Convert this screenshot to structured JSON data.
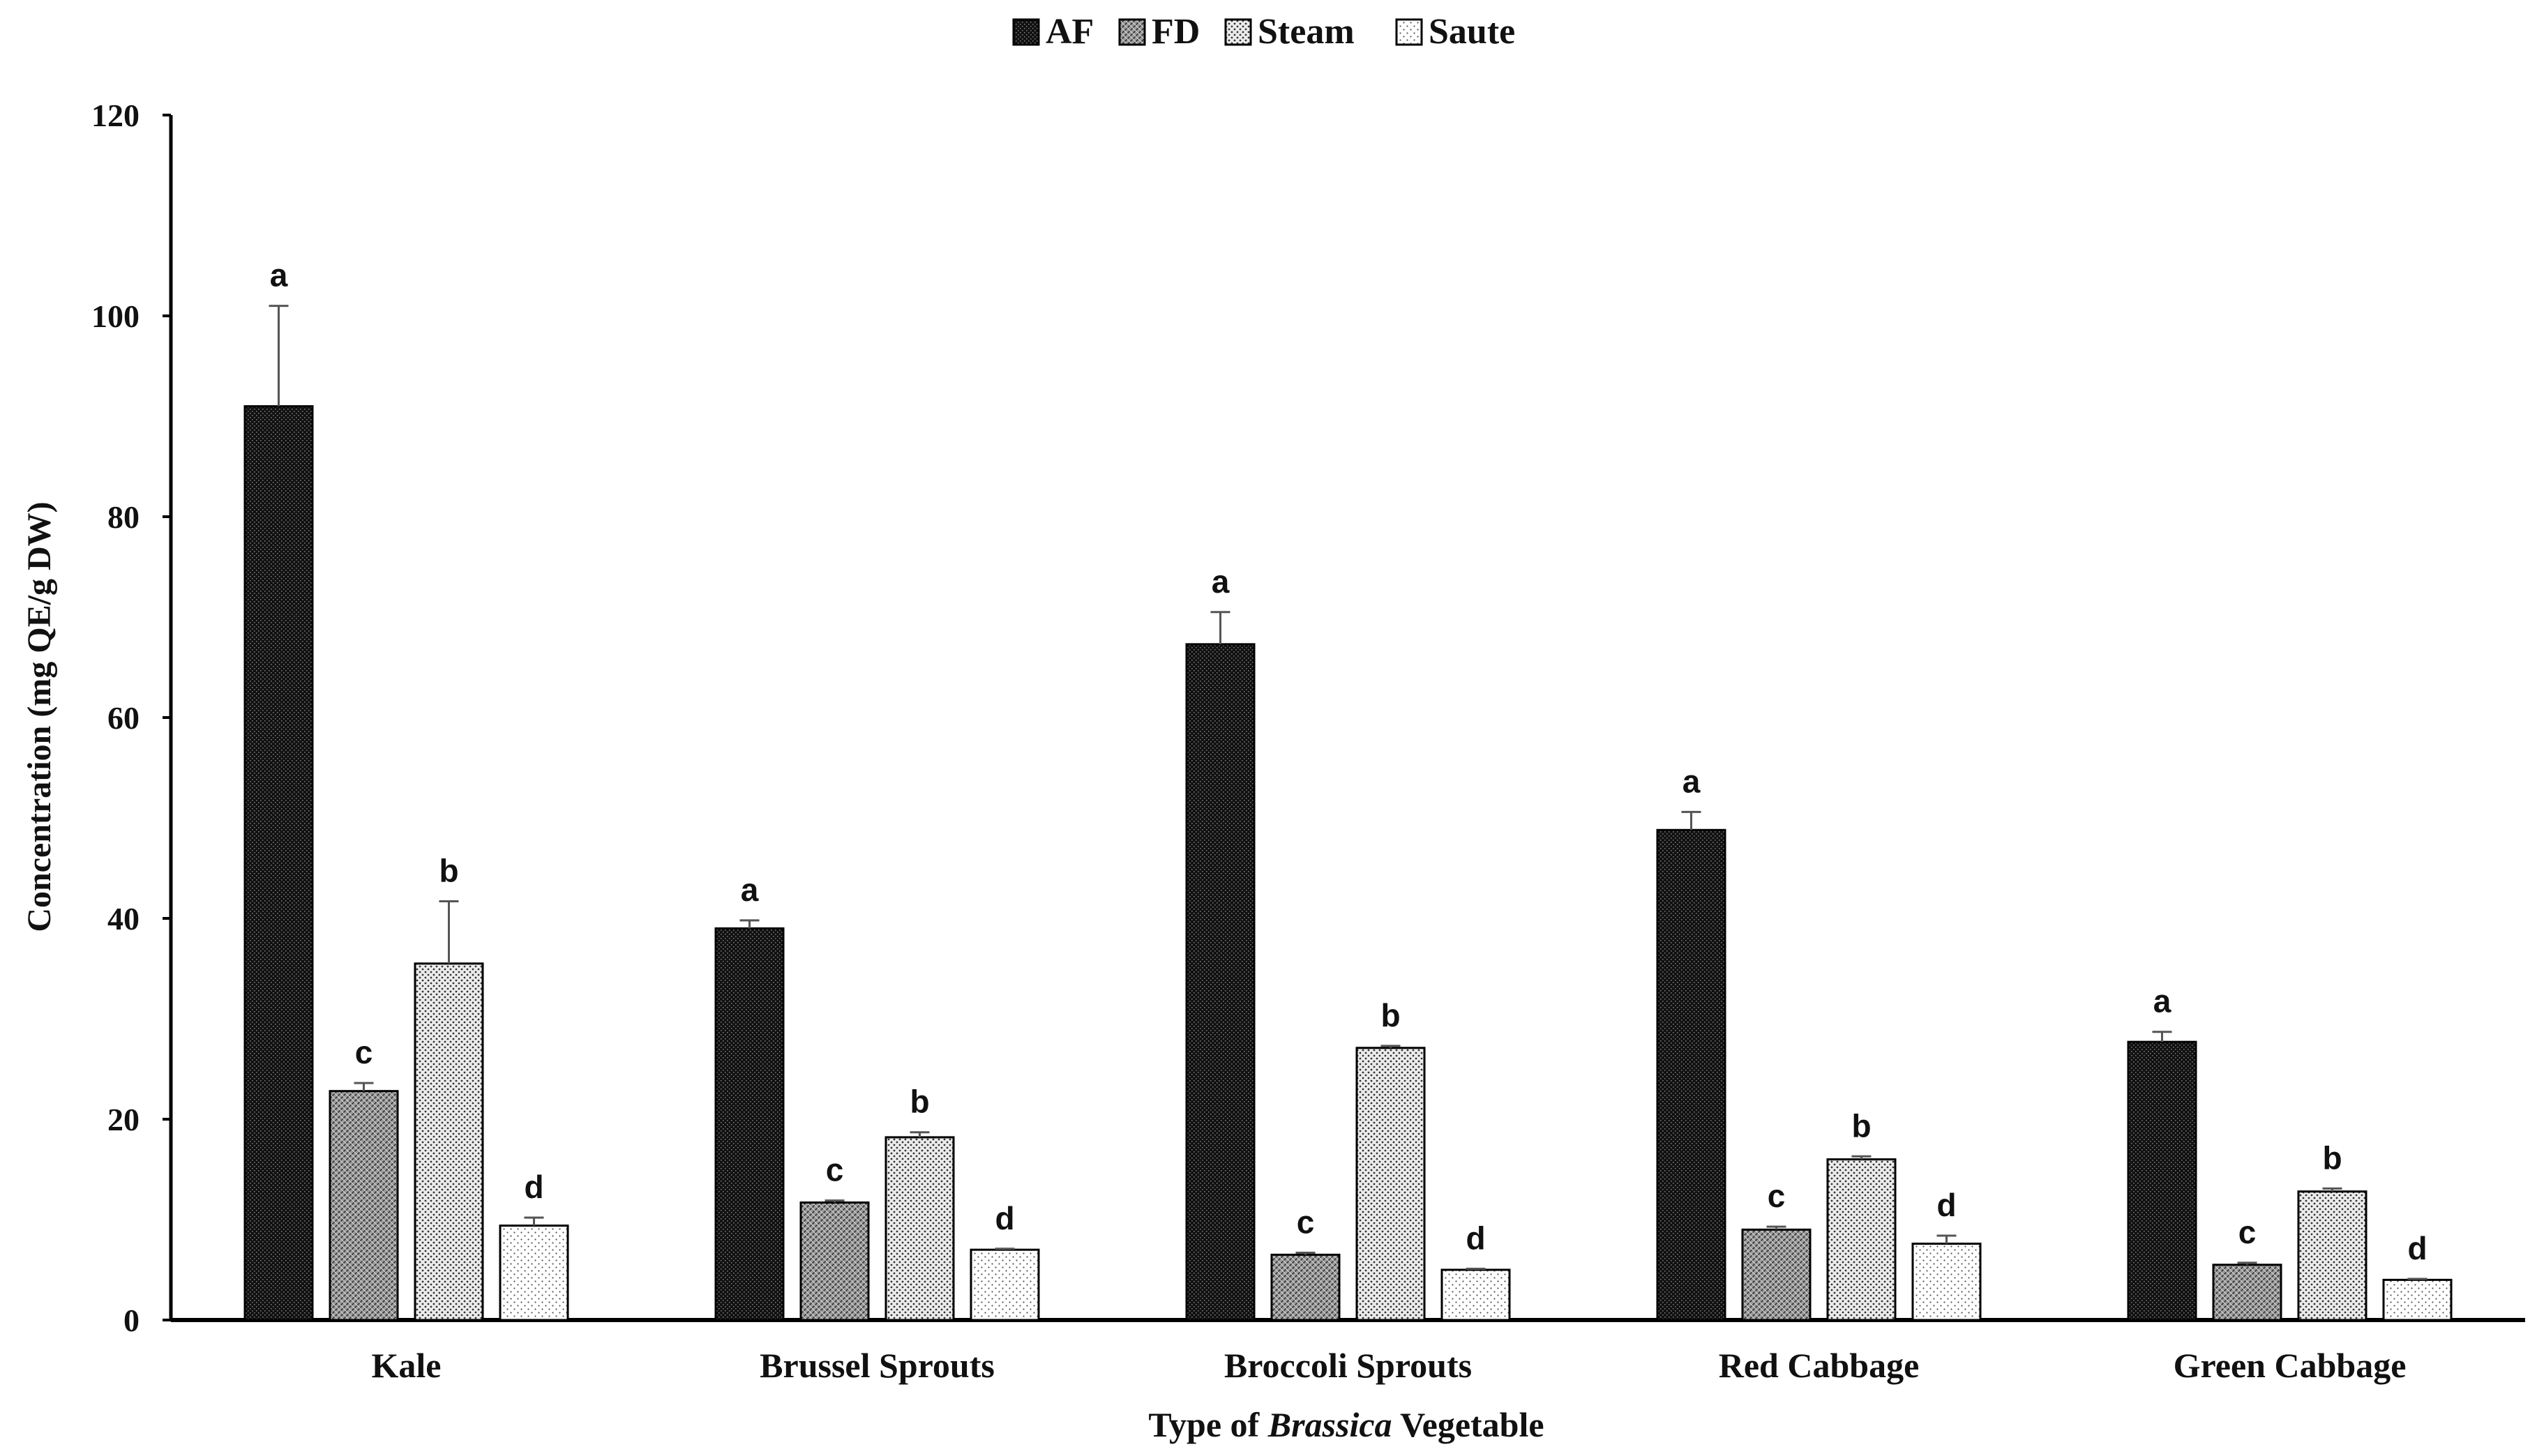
{
  "chart_data": {
    "type": "bar",
    "title": "",
    "xlabel_parts": [
      "Type of ",
      "Brassica",
      " Vegetable"
    ],
    "ylabel": "Concentration (mg QE/g DW)",
    "ylim": [
      0,
      120
    ],
    "yticks": [
      0,
      20,
      40,
      60,
      80,
      100,
      120
    ],
    "categories": [
      "Kale",
      "Brussel Sprouts",
      "Broccoli Sprouts",
      "Red Cabbage",
      "Green Cabbage"
    ],
    "legend_position": "top-center",
    "series": [
      {
        "name": "AF",
        "pattern": "af",
        "values": [
          91,
          39,
          67.3,
          48.8,
          27.7
        ],
        "errors": [
          10,
          0.8,
          3.2,
          1.8,
          1.0
        ],
        "letters": [
          "a",
          "a",
          "a",
          "a",
          "a"
        ]
      },
      {
        "name": "FD",
        "pattern": "fd",
        "values": [
          22.8,
          11.7,
          6.5,
          9.0,
          5.5
        ],
        "errors": [
          0.8,
          0.2,
          0.2,
          0.3,
          0.2
        ],
        "letters": [
          "c",
          "c",
          "c",
          "c",
          "c"
        ]
      },
      {
        "name": "Steam",
        "pattern": "steam",
        "values": [
          35.5,
          18.2,
          27.1,
          16.0,
          12.8
        ],
        "errors": [
          6.2,
          0.5,
          0.2,
          0.3,
          0.3
        ],
        "letters": [
          "b",
          "b",
          "b",
          "b",
          "b"
        ]
      },
      {
        "name": "Saute",
        "pattern": "saute",
        "values": [
          9.4,
          7.0,
          5.0,
          7.6,
          4.0
        ],
        "errors": [
          0.8,
          0.1,
          0.1,
          0.8,
          0.1
        ],
        "letters": [
          "d",
          "d",
          "d",
          "d",
          "d"
        ]
      }
    ]
  }
}
